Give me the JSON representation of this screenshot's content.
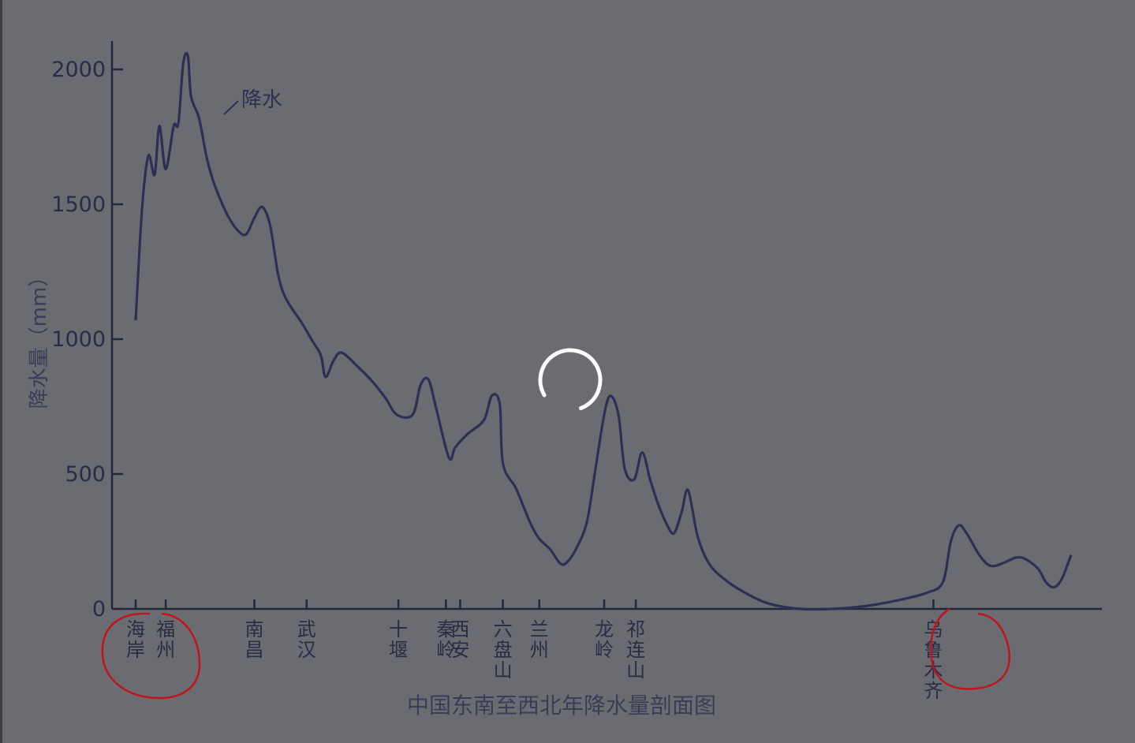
{
  "chart_data": {
    "type": "line",
    "title": "中国东南至西北年降水量剖面图",
    "xlabel": "",
    "ylabel": "降水量（mm）",
    "ylim": [
      0,
      2000
    ],
    "yticks": [
      0,
      500,
      1000,
      1500,
      2000
    ],
    "series": [
      {
        "name": "降水",
        "color": "#2e2f52",
        "points": [
          [
            0.0,
            1070
          ],
          [
            4.0,
            1480
          ],
          [
            8.0,
            1680
          ],
          [
            12.0,
            1610
          ],
          [
            15.0,
            1790
          ],
          [
            19.0,
            1630
          ],
          [
            24.0,
            1790
          ],
          [
            27.0,
            1800
          ],
          [
            30.0,
            2020
          ],
          [
            33.0,
            2050
          ],
          [
            35.0,
            1900
          ],
          [
            40.0,
            1820
          ],
          [
            45.0,
            1670
          ],
          [
            50.0,
            1570
          ],
          [
            58.0,
            1460
          ],
          [
            65.0,
            1400
          ],
          [
            70.0,
            1390
          ],
          [
            75.0,
            1450
          ],
          [
            80.0,
            1490
          ],
          [
            85.0,
            1420
          ],
          [
            90.0,
            1240
          ],
          [
            95.0,
            1150
          ],
          [
            105.0,
            1060
          ],
          [
            112.0,
            990
          ],
          [
            117.0,
            940
          ],
          [
            120.0,
            860
          ],
          [
            125.0,
            920
          ],
          [
            130.0,
            950
          ],
          [
            140.0,
            900
          ],
          [
            150.0,
            840
          ],
          [
            158.0,
            780
          ],
          [
            165.0,
            720
          ],
          [
            175.0,
            720
          ],
          [
            180.0,
            830
          ],
          [
            185.0,
            850
          ],
          [
            190.0,
            740
          ],
          [
            198.0,
            560
          ],
          [
            202.0,
            600
          ],
          [
            210.0,
            650
          ],
          [
            220.0,
            700
          ],
          [
            225.0,
            790
          ],
          [
            230.0,
            760
          ],
          [
            232.0,
            540
          ],
          [
            240.0,
            450
          ],
          [
            245.0,
            380
          ],
          [
            250.0,
            310
          ],
          [
            255.0,
            260
          ],
          [
            262.0,
            220
          ],
          [
            268.0,
            170
          ],
          [
            272.0,
            170
          ],
          [
            278.0,
            220
          ],
          [
            285.0,
            320
          ],
          [
            290.0,
            500
          ],
          [
            296.0,
            720
          ],
          [
            300.0,
            790
          ],
          [
            305.0,
            720
          ],
          [
            309.0,
            520
          ],
          [
            315.0,
            480
          ],
          [
            320.0,
            580
          ],
          [
            325.0,
            480
          ],
          [
            330.0,
            390
          ],
          [
            335.0,
            320
          ],
          [
            340.0,
            280
          ],
          [
            345.0,
            360
          ],
          [
            349.0,
            440
          ],
          [
            355.0,
            270
          ],
          [
            362.0,
            170
          ],
          [
            372.0,
            110
          ],
          [
            385.0,
            60
          ],
          [
            400.0,
            20
          ],
          [
            420.0,
            0
          ],
          [
            440.0,
            0
          ],
          [
            460.0,
            10
          ],
          [
            480.0,
            30
          ],
          [
            500.0,
            60
          ],
          [
            510.0,
            100
          ],
          [
            515.0,
            250
          ],
          [
            520.0,
            310
          ],
          [
            525.0,
            280
          ],
          [
            533.0,
            200
          ],
          [
            540.0,
            160
          ],
          [
            548.0,
            170
          ],
          [
            556.0,
            190
          ],
          [
            562.0,
            185
          ],
          [
            570.0,
            150
          ],
          [
            575.0,
            100
          ],
          [
            580.0,
            80
          ],
          [
            585.0,
            110
          ],
          [
            591.0,
            200
          ]
        ]
      }
    ],
    "xrange": [
      -8,
      591
    ],
    "locations": [
      {
        "x": 0,
        "label": "海岸",
        "circled": true
      },
      {
        "x": 19,
        "label": "福州",
        "circled": true
      },
      {
        "x": 75,
        "label": "南昌"
      },
      {
        "x": 108,
        "label": "武汉"
      },
      {
        "x": 166,
        "label": "十堰"
      },
      {
        "x": 196,
        "label": "秦岭"
      },
      {
        "x": 205,
        "label": "西安"
      },
      {
        "x": 232,
        "label": "六盘山"
      },
      {
        "x": 255,
        "label": "兰州"
      },
      {
        "x": 296,
        "label": "龙岭"
      },
      {
        "x": 316,
        "label": "祁连山"
      },
      {
        "x": 504,
        "label": "乌鲁木齐",
        "circled": true
      }
    ]
  },
  "overlay": {
    "loading_icon": "loading-spinner-icon",
    "annotation_color": "#c0141e"
  }
}
